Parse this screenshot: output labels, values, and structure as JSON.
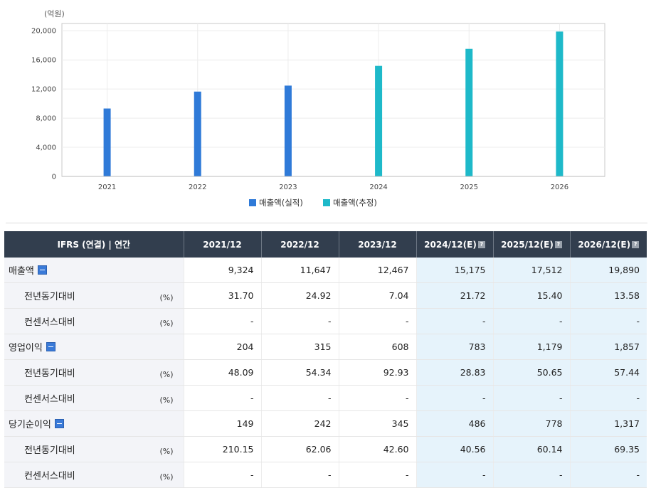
{
  "chart_data": {
    "type": "bar",
    "unit_label": "(억원)",
    "categories": [
      "2021",
      "2022",
      "2023",
      "2024",
      "2025",
      "2026"
    ],
    "values": [
      9324,
      11647,
      12467,
      15175,
      17512,
      19890
    ],
    "estimated": [
      false,
      false,
      false,
      true,
      true,
      true
    ],
    "ylim": [
      0,
      21000
    ],
    "yticks": [
      0,
      4000,
      8000,
      12000,
      16000,
      20000
    ],
    "ytick_labels": [
      "0",
      "4,000",
      "8,000",
      "12,000",
      "16,000",
      "20,000"
    ],
    "grid": true,
    "legend": [
      {
        "label": "매출액(실적)",
        "color": "#2f7ad8"
      },
      {
        "label": "매출액(추정)",
        "color": "#1eb9c9"
      }
    ],
    "legend_position": "bottom-center"
  },
  "table": {
    "header_label": "IFRS (연결) | 연간",
    "columns": [
      {
        "label": "2021/12",
        "estimate": false
      },
      {
        "label": "2022/12",
        "estimate": false
      },
      {
        "label": "2023/12",
        "estimate": false
      },
      {
        "label": "2024/12(E)",
        "estimate": true
      },
      {
        "label": "2025/12(E)",
        "estimate": true
      },
      {
        "label": "2026/12(E)",
        "estimate": true
      }
    ],
    "rows": [
      {
        "label": "매출액",
        "type": "main",
        "unit": "",
        "values": [
          "9,324",
          "11,647",
          "12,467",
          "15,175",
          "17,512",
          "19,890"
        ]
      },
      {
        "label": "전년동기대비",
        "type": "sub",
        "unit": "(%)",
        "values": [
          "31.70",
          "24.92",
          "7.04",
          "21.72",
          "15.40",
          "13.58"
        ]
      },
      {
        "label": "컨센서스대비",
        "type": "sub",
        "unit": "(%)",
        "values": [
          "-",
          "-",
          "-",
          "-",
          "-",
          "-"
        ]
      },
      {
        "label": "영업이익",
        "type": "main",
        "unit": "",
        "values": [
          "204",
          "315",
          "608",
          "783",
          "1,179",
          "1,857"
        ]
      },
      {
        "label": "전년동기대비",
        "type": "sub",
        "unit": "(%)",
        "values": [
          "48.09",
          "54.34",
          "92.93",
          "28.83",
          "50.65",
          "57.44"
        ]
      },
      {
        "label": "컨센서스대비",
        "type": "sub",
        "unit": "(%)",
        "values": [
          "-",
          "-",
          "-",
          "-",
          "-",
          "-"
        ]
      },
      {
        "label": "당기순이익",
        "type": "main",
        "unit": "",
        "values": [
          "149",
          "242",
          "345",
          "486",
          "778",
          "1,317"
        ]
      },
      {
        "label": "전년동기대비",
        "type": "sub",
        "unit": "(%)",
        "values": [
          "210.15",
          "62.06",
          "42.60",
          "40.56",
          "60.14",
          "69.35"
        ]
      },
      {
        "label": "컨센서스대비",
        "type": "sub",
        "unit": "(%)",
        "values": [
          "-",
          "-",
          "-",
          "-",
          "-",
          "-"
        ]
      }
    ]
  },
  "icons": {
    "toggle": "collapse-minus-icon",
    "help": "help-question-icon"
  }
}
